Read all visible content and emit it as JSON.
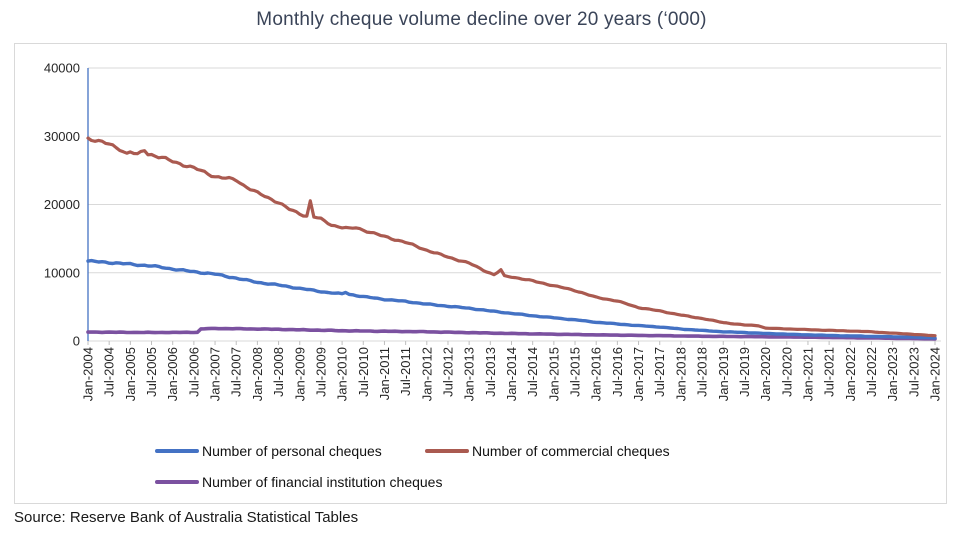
{
  "title": "Monthly cheque volume decline over 20 years (‘000)",
  "source_note": "Source: Reserve Bank of Australia Statistical Tables",
  "chart_data": {
    "type": "line",
    "title": "Monthly cheque volume decline over 20 years (‘000)",
    "xlabel": "",
    "ylabel": "",
    "ylim": [
      0,
      40000
    ],
    "y_ticks": [
      0,
      10000,
      20000,
      30000,
      40000
    ],
    "x_range": [
      "Jan-2004",
      "Jan-2024"
    ],
    "months_total": 241,
    "x_tick_every_months": 6,
    "x_tick_labels": [
      "Jan-2004",
      "Jul-2004",
      "Jan-2005",
      "Jul-2005",
      "Jan-2006",
      "Jul-2006",
      "Jan-2007",
      "Jul-2007",
      "Jan-2008",
      "Jul-2008",
      "Jan-2009",
      "Jul-2009",
      "Jan-2010",
      "Jul-2010",
      "Jan-2011",
      "Jul-2011",
      "Jan-2012",
      "Jul-2012",
      "Jan-2013",
      "Jul-2013",
      "Jan-2014",
      "Jul-2014",
      "Jan-2015",
      "Jul-2015",
      "Jan-2016",
      "Jul-2016",
      "Jan-2017",
      "Jul-2017",
      "Jan-2018",
      "Jul-2018",
      "Jan-2019",
      "Jul-2019",
      "Jan-2020",
      "Jul-2020",
      "Jan-2021",
      "Jul-2021",
      "Jan-2022",
      "Jul-2022",
      "Jan-2023",
      "Jul-2023",
      "Jan-2024"
    ],
    "grid": "horizontal-only",
    "legend_position": "bottom",
    "colors": {
      "axis_line": "#4472C4",
      "gridline": "#D9D9D9",
      "tick_mark": "#BFBFBF",
      "title_text": "#3A4458",
      "axis_label_text": "#262626"
    },
    "series": [
      {
        "name": "Number of personal cheques",
        "color": "#4472C4",
        "stroke_width": 3.4,
        "points_month_value": [
          [
            0,
            11700
          ],
          [
            6,
            11500
          ],
          [
            12,
            11250
          ],
          [
            18,
            11000
          ],
          [
            24,
            10550
          ],
          [
            30,
            10150
          ],
          [
            36,
            9800
          ],
          [
            40,
            9400
          ],
          [
            42,
            9200
          ],
          [
            48,
            8600
          ],
          [
            54,
            8200
          ],
          [
            60,
            7700
          ],
          [
            66,
            7250
          ],
          [
            68,
            7100
          ],
          [
            72,
            6900
          ],
          [
            73,
            7150
          ],
          [
            74,
            6850
          ],
          [
            78,
            6500
          ],
          [
            84,
            6100
          ],
          [
            90,
            5800
          ],
          [
            96,
            5400
          ],
          [
            102,
            5100
          ],
          [
            108,
            4800
          ],
          [
            114,
            4400
          ],
          [
            120,
            4050
          ],
          [
            126,
            3700
          ],
          [
            132,
            3400
          ],
          [
            138,
            3100
          ],
          [
            144,
            2750
          ],
          [
            150,
            2500
          ],
          [
            156,
            2250
          ],
          [
            162,
            2050
          ],
          [
            168,
            1750
          ],
          [
            174,
            1550
          ],
          [
            180,
            1350
          ],
          [
            186,
            1250
          ],
          [
            192,
            1100
          ],
          [
            198,
            1000
          ],
          [
            204,
            900
          ],
          [
            210,
            820
          ],
          [
            216,
            740
          ],
          [
            222,
            680
          ],
          [
            228,
            620
          ],
          [
            234,
            550
          ],
          [
            240,
            470
          ]
        ]
      },
      {
        "name": "Number of commercial cheques",
        "color": "#AA5A50",
        "stroke_width": 3.2,
        "points_month_value": [
          [
            0,
            29700
          ],
          [
            3,
            29300
          ],
          [
            6,
            28800
          ],
          [
            9,
            28150
          ],
          [
            11,
            27450
          ],
          [
            12,
            27750
          ],
          [
            14,
            27250
          ],
          [
            16,
            28000
          ],
          [
            17,
            27400
          ],
          [
            18,
            27300
          ],
          [
            21,
            26850
          ],
          [
            24,
            26300
          ],
          [
            30,
            25350
          ],
          [
            36,
            24100
          ],
          [
            42,
            23600
          ],
          [
            44,
            22850
          ],
          [
            48,
            21700
          ],
          [
            54,
            20300
          ],
          [
            57,
            19300
          ],
          [
            60,
            18650
          ],
          [
            62,
            18300
          ],
          [
            63,
            20500
          ],
          [
            64,
            18200
          ],
          [
            66,
            17850
          ],
          [
            69,
            17000
          ],
          [
            72,
            16650
          ],
          [
            74,
            16450
          ],
          [
            76,
            16600
          ],
          [
            78,
            16250
          ],
          [
            84,
            15300
          ],
          [
            90,
            14450
          ],
          [
            96,
            13300
          ],
          [
            102,
            12300
          ],
          [
            108,
            11400
          ],
          [
            112,
            10400
          ],
          [
            115,
            9700
          ],
          [
            117,
            10400
          ],
          [
            118,
            9500
          ],
          [
            120,
            9400
          ],
          [
            126,
            8800
          ],
          [
            132,
            8100
          ],
          [
            138,
            7400
          ],
          [
            144,
            6400
          ],
          [
            150,
            5850
          ],
          [
            156,
            4900
          ],
          [
            162,
            4400
          ],
          [
            168,
            3800
          ],
          [
            174,
            3300
          ],
          [
            180,
            2700
          ],
          [
            186,
            2350
          ],
          [
            190,
            2250
          ],
          [
            192,
            1880
          ],
          [
            198,
            1780
          ],
          [
            204,
            1660
          ],
          [
            210,
            1560
          ],
          [
            216,
            1460
          ],
          [
            222,
            1350
          ],
          [
            228,
            1150
          ],
          [
            234,
            980
          ],
          [
            240,
            760
          ]
        ]
      },
      {
        "name": "Number of financial institution cheques",
        "color": "#7B51A0",
        "stroke_width": 3.6,
        "points_month_value": [
          [
            0,
            1310
          ],
          [
            6,
            1290
          ],
          [
            12,
            1265
          ],
          [
            18,
            1250
          ],
          [
            24,
            1255
          ],
          [
            31,
            1285
          ],
          [
            32,
            1760
          ],
          [
            34,
            1810
          ],
          [
            36,
            1830
          ],
          [
            42,
            1800
          ],
          [
            48,
            1760
          ],
          [
            54,
            1710
          ],
          [
            60,
            1640
          ],
          [
            66,
            1580
          ],
          [
            72,
            1500
          ],
          [
            84,
            1430
          ],
          [
            96,
            1350
          ],
          [
            108,
            1230
          ],
          [
            120,
            1100
          ],
          [
            132,
            1000
          ],
          [
            144,
            900
          ],
          [
            156,
            820
          ],
          [
            168,
            740
          ],
          [
            180,
            670
          ],
          [
            192,
            620
          ],
          [
            204,
            560
          ],
          [
            216,
            480
          ],
          [
            228,
            400
          ],
          [
            240,
            310
          ]
        ]
      }
    ],
    "notable_features": [
      "spike in commercial cheques to ~20500 around month 63 (2009)",
      "spike in commercial cheques to ~10400 around month 117 (late 2013)",
      "step up in financial institution cheques from ~1285 to ~1760 around month 32 (2006)"
    ]
  },
  "legend": {
    "items": [
      {
        "label": "Number of personal cheques"
      },
      {
        "label": "Number of commercial cheques"
      },
      {
        "label": "Number of financial institution cheques"
      }
    ]
  }
}
